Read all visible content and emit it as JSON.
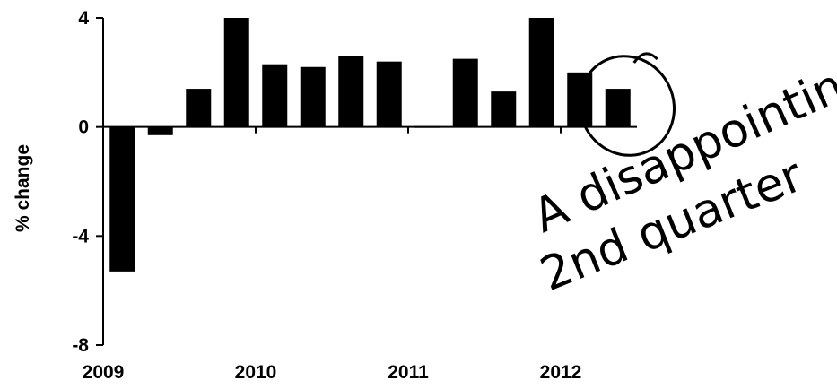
{
  "chart_data": {
    "type": "bar",
    "ylabel": "% change",
    "ylim": [
      -8,
      4
    ],
    "yticks": [
      4,
      0,
      -4,
      -8
    ],
    "xtick_labels": [
      "2009",
      "2010",
      "2011",
      "2012"
    ],
    "values": [
      -5.3,
      -0.3,
      1.4,
      4.0,
      2.3,
      2.2,
      2.6,
      2.4,
      0.05,
      2.5,
      1.3,
      4.0,
      2.0,
      1.4
    ],
    "bar_color": "#000000",
    "grid": false,
    "annotation": {
      "line1": "A disappointing",
      "line2": "2nd quarter",
      "circled_bar_index": 13
    }
  }
}
